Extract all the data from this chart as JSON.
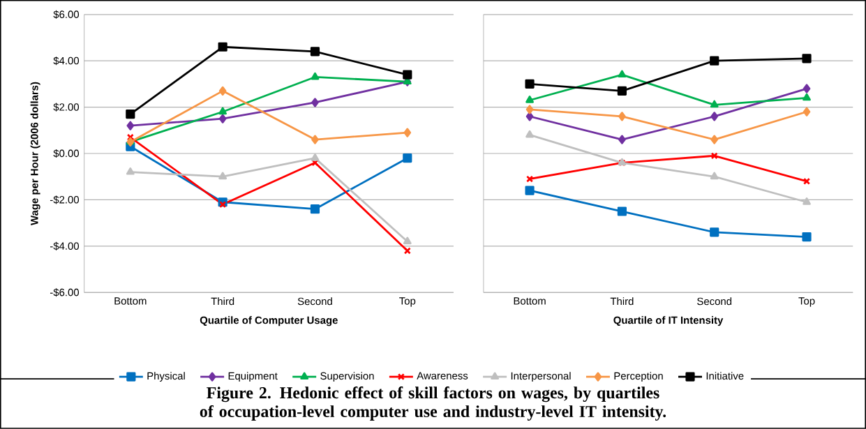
{
  "chart_data": [
    {
      "type": "line",
      "xlabel": "Quartile of Computer Usage",
      "ylabel": "Wage per Hour (2006 dollars)",
      "categories": [
        "Bottom",
        "Third",
        "Second",
        "Top"
      ],
      "ylim": [
        -6,
        6
      ],
      "yticks": [
        {
          "value": -6,
          "label": "-$6.00"
        },
        {
          "value": -4,
          "label": "-$4.00"
        },
        {
          "value": -2,
          "label": "-$2.00"
        },
        {
          "value": 0,
          "label": "$0.00"
        },
        {
          "value": 2,
          "label": "$2.00"
        },
        {
          "value": 4,
          "label": "$4.00"
        },
        {
          "value": 6,
          "label": "$6.00"
        }
      ],
      "grid": "y",
      "legend": "bottom",
      "line_style": "solid",
      "annotations": [
        "Figure 2. Hedonic effect of skill factors on wages, by quartiles of occupation-level computer use and industry-level IT intensity."
      ],
      "series": [
        {
          "name": "Physical",
          "color": "#0070c0",
          "marker": "square",
          "values": [
            0.3,
            -2.1,
            -2.4,
            -0.2
          ]
        },
        {
          "name": "Equipment",
          "color": "#7030a0",
          "marker": "diamond",
          "values": [
            1.2,
            1.5,
            2.2,
            3.1
          ]
        },
        {
          "name": "Supervision",
          "color": "#00b050",
          "marker": "triangle",
          "values": [
            0.5,
            1.8,
            3.3,
            3.1
          ]
        },
        {
          "name": "Awareness",
          "color": "#ff0000",
          "marker": "cross",
          "values": [
            0.7,
            -2.2,
            -0.4,
            -4.2
          ]
        },
        {
          "name": "Interpersonal",
          "color": "#bfbfbf",
          "marker": "triangle",
          "values": [
            -0.8,
            -1.0,
            -0.2,
            -3.8
          ]
        },
        {
          "name": "Perception",
          "color": "#f79646",
          "marker": "diamond",
          "values": [
            0.5,
            2.7,
            0.6,
            0.9
          ]
        },
        {
          "name": "Initiative",
          "color": "#000000",
          "marker": "square",
          "values": [
            1.7,
            4.6,
            4.4,
            3.4
          ]
        }
      ]
    },
    {
      "type": "line",
      "xlabel": "Quartile of IT Intensity",
      "categories": [
        "Bottom",
        "Third",
        "Second",
        "Top"
      ],
      "ylim": [
        -6,
        6
      ],
      "yticks": [
        {
          "value": -6,
          "label": null
        },
        {
          "value": -4,
          "label": null
        },
        {
          "value": -2,
          "label": null
        },
        {
          "value": 0,
          "label": null
        },
        {
          "value": 2,
          "label": null
        },
        {
          "value": 4,
          "label": null
        },
        {
          "value": 6,
          "label": null
        }
      ],
      "grid": "y",
      "tick_labels": "x",
      "line_style": "solid",
      "series": [
        {
          "color": "#0070c0",
          "marker": "square",
          "values": [
            -1.6,
            -2.5,
            -3.4,
            -3.6
          ]
        },
        {
          "color": "#7030a0",
          "marker": "diamond",
          "values": [
            1.6,
            0.6,
            1.6,
            2.8
          ]
        },
        {
          "color": "#00b050",
          "marker": "triangle",
          "values": [
            2.3,
            3.4,
            2.1,
            2.4
          ]
        },
        {
          "color": "#ff0000",
          "marker": "cross",
          "values": [
            -1.1,
            -0.4,
            -0.1,
            -1.2
          ]
        },
        {
          "color": "#bfbfbf",
          "marker": "triangle",
          "values": [
            0.8,
            -0.4,
            -1.0,
            -2.1
          ]
        },
        {
          "color": "#f79646",
          "marker": "diamond",
          "values": [
            1.9,
            1.6,
            0.6,
            1.8
          ]
        },
        {
          "color": "#000000",
          "marker": "square",
          "values": [
            3.0,
            2.7,
            4.0,
            4.1
          ]
        }
      ]
    }
  ]
}
